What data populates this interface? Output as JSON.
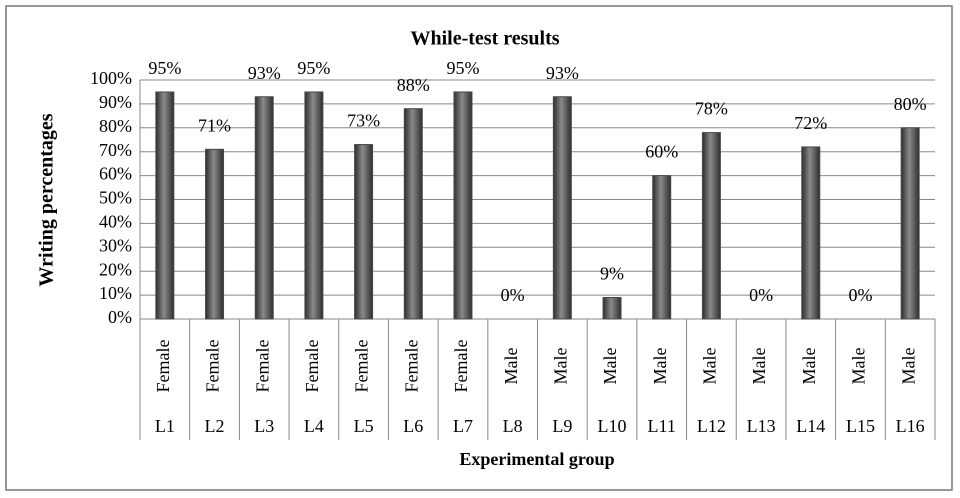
{
  "chart_data": {
    "type": "bar",
    "title": "While-test results",
    "ylabel": "Writing percentages",
    "xlabel": "Experimental group",
    "categories": [
      "L1",
      "L2",
      "L3",
      "L4",
      "L5",
      "L6",
      "L7",
      "L8",
      "L9",
      "L10",
      "L11",
      "L12",
      "L13",
      "L14",
      "L15",
      "L16"
    ],
    "groups": [
      "Female",
      "Female",
      "Female",
      "Female",
      "Female",
      "Female",
      "Female",
      "Male",
      "Male",
      "Male",
      "Male",
      "Male",
      "Male",
      "Male",
      "Male",
      "Male"
    ],
    "values": [
      95,
      71,
      93,
      95,
      73,
      88,
      95,
      0,
      93,
      9,
      60,
      78,
      0,
      72,
      0,
      80
    ],
    "value_labels": [
      "95%",
      "71%",
      "93%",
      "95%",
      "73%",
      "88%",
      "95%",
      "0%",
      "93%",
      "9%",
      "60%",
      "78%",
      "0%",
      "72%",
      "0%",
      "80%"
    ],
    "color": "#4a4a4a",
    "ylim": [
      0,
      100
    ],
    "yticks": [
      {
        "value": 0,
        "label": "0%"
      },
      {
        "value": 10,
        "label": "10%"
      },
      {
        "value": 20,
        "label": "20%"
      },
      {
        "value": 30,
        "label": "30%"
      },
      {
        "value": 40,
        "label": "40%"
      },
      {
        "value": 50,
        "label": "50%"
      },
      {
        "value": 60,
        "label": "60%"
      },
      {
        "value": 70,
        "label": "70%"
      },
      {
        "value": 80,
        "label": "80%"
      },
      {
        "value": 90,
        "label": "90%"
      },
      {
        "value": 100,
        "label": "100%"
      }
    ],
    "grid": true
  }
}
